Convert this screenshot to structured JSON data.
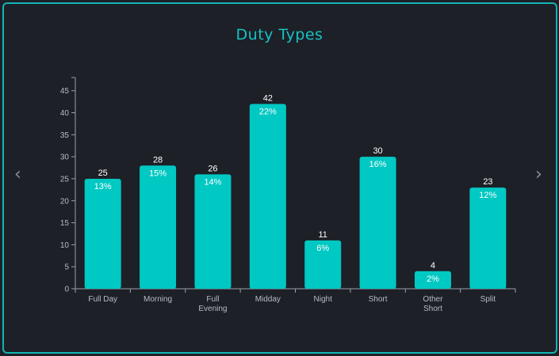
{
  "chart_data": {
    "type": "bar",
    "title": "Duty Types",
    "categories": [
      [
        "Full Day"
      ],
      [
        "Morning"
      ],
      [
        "Full",
        "Evening"
      ],
      [
        "Midday"
      ],
      [
        "Night"
      ],
      [
        "Short"
      ],
      [
        "Other",
        "Short"
      ],
      [
        "Split"
      ]
    ],
    "values": [
      25,
      28,
      26,
      42,
      11,
      30,
      4,
      23
    ],
    "percent_labels": [
      "13%",
      "15%",
      "14%",
      "22%",
      "6%",
      "16%",
      "2%",
      "12%"
    ],
    "ylim": [
      0,
      48
    ],
    "yticks": [
      0,
      5,
      10,
      15,
      20,
      25,
      30,
      35,
      40,
      45
    ],
    "xlabel": "",
    "ylabel": "",
    "grid": false,
    "legend": "none",
    "bar_color": "#00c8c3"
  },
  "nav": {
    "prev_icon": "chevron-left-icon",
    "next_icon": "chevron-right-icon"
  },
  "colors": {
    "background": "#1d2027",
    "border": "#12b4b4",
    "title": "#17c2c2",
    "axis": "#9aa0a8"
  }
}
